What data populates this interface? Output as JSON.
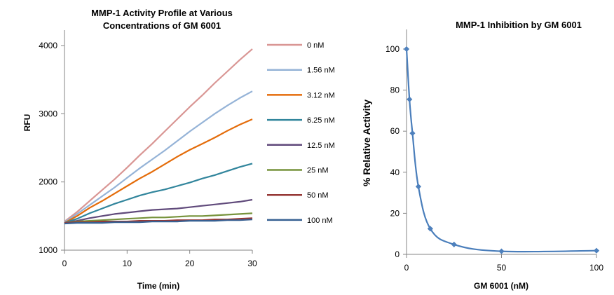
{
  "chart_data": [
    {
      "type": "line",
      "title_lines": [
        "MMP-1 Activity Profile at Various",
        "Concentrations of GM 6001"
      ],
      "xlabel": "Time (min)",
      "ylabel": "RFU",
      "xlim": [
        0,
        30
      ],
      "ylim": [
        1000,
        4000
      ],
      "x_ticks": [
        "0",
        "10",
        "20",
        "30"
      ],
      "y_ticks": [
        "1000",
        "2000",
        "3000",
        "4000"
      ],
      "grid": false,
      "legend_position": "right",
      "x": [
        0,
        2,
        4,
        6,
        8,
        10,
        12,
        14,
        16,
        18,
        20,
        22,
        24,
        26,
        28,
        30
      ],
      "series": [
        {
          "name": "0 nM",
          "color": "#d99694",
          "values": [
            1420,
            1560,
            1720,
            1880,
            2040,
            2210,
            2390,
            2560,
            2740,
            2920,
            3100,
            3270,
            3450,
            3620,
            3790,
            3950
          ]
        },
        {
          "name": "1.56 nM",
          "color": "#95b3d7",
          "values": [
            1410,
            1530,
            1660,
            1790,
            1920,
            2060,
            2200,
            2330,
            2460,
            2600,
            2740,
            2870,
            3000,
            3120,
            3230,
            3330
          ]
        },
        {
          "name": "3.12 nM",
          "color": "#e46c0a",
          "values": [
            1400,
            1500,
            1620,
            1720,
            1830,
            1940,
            2050,
            2150,
            2260,
            2370,
            2470,
            2560,
            2650,
            2750,
            2840,
            2920
          ]
        },
        {
          "name": "6.25 nM",
          "color": "#31859c",
          "values": [
            1400,
            1460,
            1540,
            1610,
            1680,
            1740,
            1800,
            1850,
            1890,
            1940,
            1990,
            2050,
            2100,
            2160,
            2220,
            2270
          ]
        },
        {
          "name": "12.5 nM",
          "color": "#604a7b",
          "values": [
            1400,
            1430,
            1470,
            1500,
            1530,
            1550,
            1570,
            1590,
            1600,
            1610,
            1630,
            1650,
            1670,
            1690,
            1710,
            1740
          ]
        },
        {
          "name": "25 nM",
          "color": "#77933c",
          "values": [
            1400,
            1420,
            1430,
            1440,
            1450,
            1460,
            1470,
            1480,
            1480,
            1490,
            1500,
            1500,
            1510,
            1520,
            1530,
            1540
          ]
        },
        {
          "name": "50 nM",
          "color": "#953735",
          "values": [
            1400,
            1410,
            1410,
            1420,
            1420,
            1420,
            1430,
            1430,
            1430,
            1440,
            1440,
            1440,
            1450,
            1450,
            1460,
            1470
          ]
        },
        {
          "name": "100 nM",
          "color": "#376092",
          "values": [
            1390,
            1400,
            1400,
            1400,
            1410,
            1410,
            1410,
            1420,
            1420,
            1420,
            1430,
            1430,
            1430,
            1440,
            1440,
            1450
          ]
        }
      ]
    },
    {
      "type": "scatter",
      "title": "MMP-1 Inhibition by GM 6001",
      "xlabel": "GM 6001 (nM)",
      "ylabel": "% Relative Activity",
      "xlim": [
        0,
        100
      ],
      "ylim": [
        0,
        100
      ],
      "x_ticks": [
        "0",
        "50",
        "100"
      ],
      "y_ticks": [
        "0",
        "20",
        "40",
        "60",
        "80",
        "100"
      ],
      "grid": false,
      "color": "#4a7ebb",
      "marker_color": "#4f81bd",
      "points": [
        {
          "x": 0,
          "y": 100
        },
        {
          "x": 1.56,
          "y": 75.5
        },
        {
          "x": 3.12,
          "y": 59
        },
        {
          "x": 6.25,
          "y": 33
        },
        {
          "x": 12.5,
          "y": 12.5
        },
        {
          "x": 25,
          "y": 4.8
        },
        {
          "x": 50,
          "y": 1.5
        },
        {
          "x": 100,
          "y": 1.8
        }
      ]
    }
  ]
}
